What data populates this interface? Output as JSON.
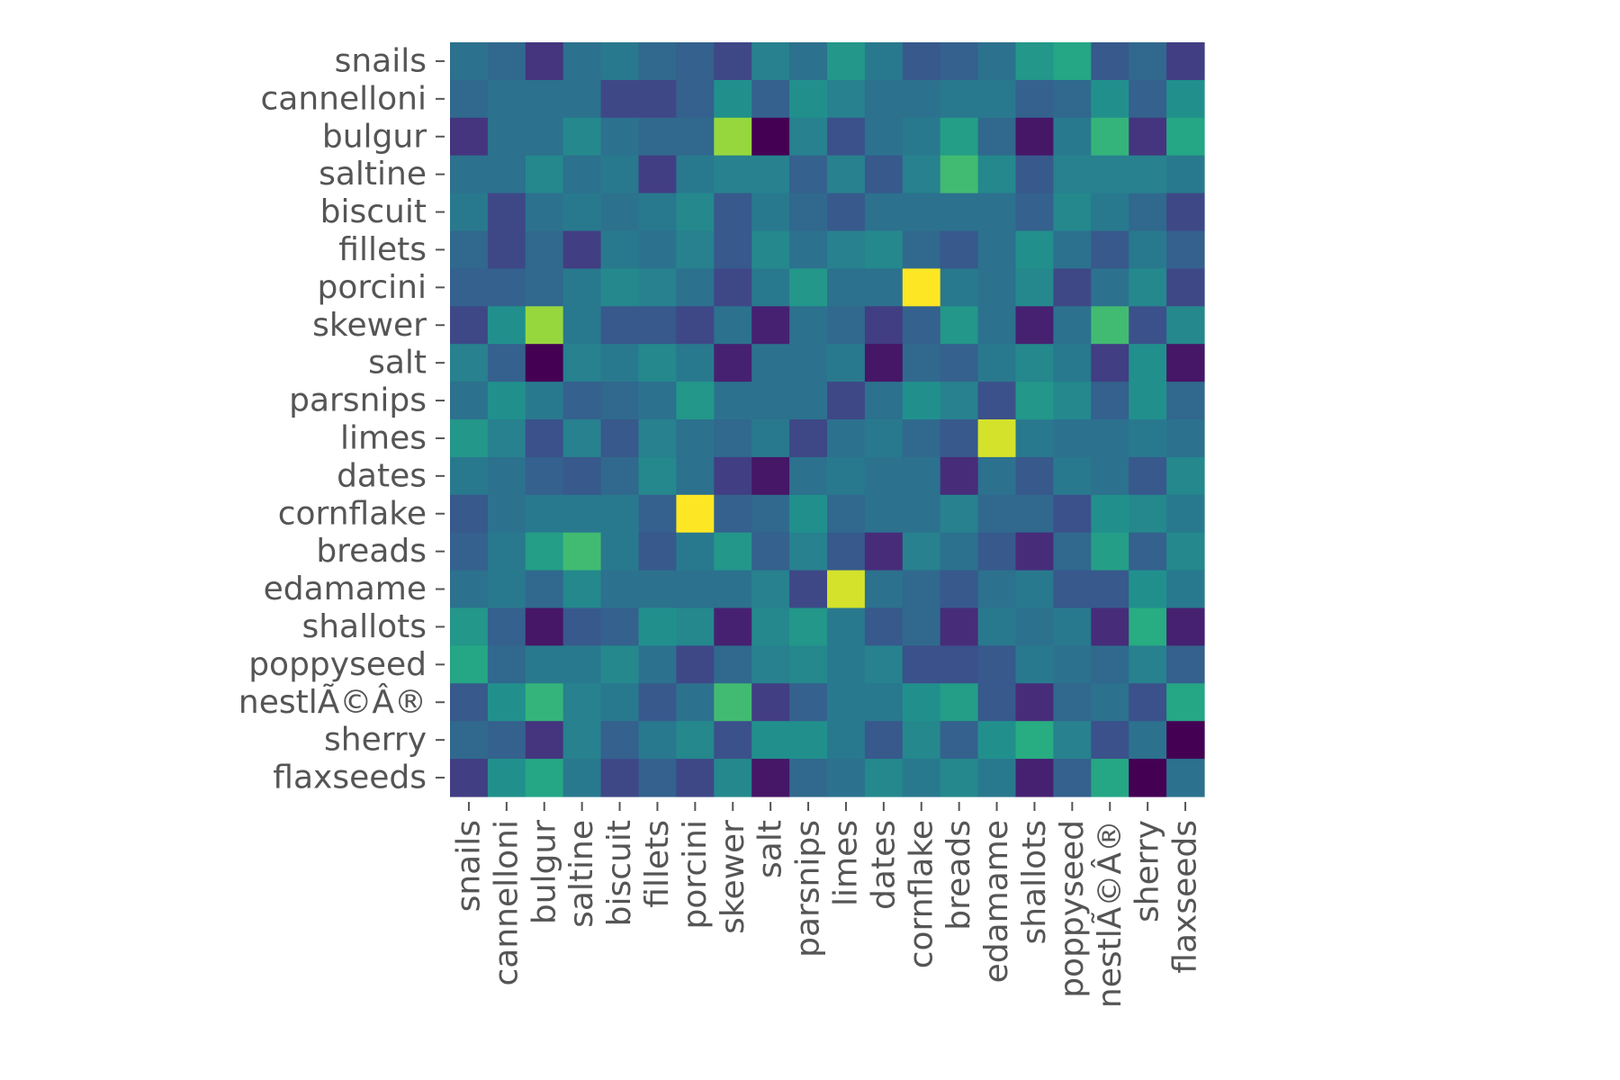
{
  "chart_data": {
    "type": "heatmap",
    "title": "",
    "xlabel": "",
    "ylabel": "",
    "colormap": "viridis",
    "value_range": [
      -0.6,
      1.0
    ],
    "grid": false,
    "legend": "none",
    "row_labels": [
      "snails",
      "cannelloni",
      "bulgur",
      "saltine",
      "biscuit",
      "fillets",
      "porcini",
      "skewer",
      "salt",
      "parsnips",
      "limes",
      "dates",
      "cornflake",
      "breads",
      "edamame",
      "shallots",
      "poppyseed",
      "nestlÃ©Â®",
      "sherry",
      "flaxseeds"
    ],
    "col_labels": [
      "snails",
      "cannelloni",
      "bulgur",
      "saltine",
      "biscuit",
      "fillets",
      "porcini",
      "skewer",
      "salt",
      "parsnips",
      "limes",
      "dates",
      "cornflake",
      "breads",
      "edamame",
      "shallots",
      "poppyseed",
      "nestlÃ©Â®",
      "sherry",
      "flaxseeds"
    ],
    "values": [
      [
        0.0,
        -0.05,
        -0.35,
        0.0,
        0.05,
        -0.05,
        -0.1,
        -0.25,
        0.1,
        0.0,
        0.25,
        0.05,
        -0.15,
        -0.1,
        0.0,
        0.25,
        0.35,
        -0.15,
        -0.05,
        -0.3
      ],
      [
        -0.05,
        0.0,
        0.0,
        0.0,
        -0.25,
        -0.25,
        -0.1,
        0.2,
        -0.1,
        0.2,
        0.1,
        0.0,
        0.0,
        0.05,
        0.05,
        -0.1,
        -0.05,
        0.2,
        -0.1,
        0.2
      ],
      [
        -0.35,
        0.0,
        0.0,
        0.15,
        0.0,
        -0.05,
        -0.05,
        0.75,
        -0.6,
        0.1,
        -0.2,
        0.0,
        0.05,
        0.3,
        -0.05,
        -0.5,
        0.05,
        0.45,
        -0.35,
        0.35
      ],
      [
        0.0,
        0.0,
        0.15,
        0.0,
        0.05,
        -0.3,
        0.05,
        0.1,
        0.1,
        -0.1,
        0.1,
        -0.15,
        0.1,
        0.5,
        0.15,
        -0.15,
        0.1,
        0.1,
        0.1,
        0.05
      ],
      [
        0.05,
        -0.25,
        0.0,
        0.05,
        0.0,
        0.05,
        0.15,
        -0.15,
        0.05,
        -0.05,
        -0.15,
        0.0,
        0.0,
        0.0,
        0.0,
        -0.1,
        0.15,
        0.05,
        -0.05,
        -0.25
      ],
      [
        -0.05,
        -0.25,
        -0.05,
        -0.3,
        0.05,
        0.0,
        0.1,
        -0.15,
        0.15,
        0.0,
        0.1,
        0.15,
        -0.05,
        -0.15,
        0.0,
        0.2,
        0.0,
        -0.15,
        0.05,
        -0.1
      ],
      [
        -0.1,
        -0.1,
        -0.05,
        0.05,
        0.15,
        0.1,
        0.0,
        -0.25,
        0.05,
        0.25,
        0.0,
        0.0,
        1.0,
        0.05,
        0.0,
        0.15,
        -0.25,
        0.0,
        0.15,
        -0.25
      ],
      [
        -0.25,
        0.2,
        0.75,
        0.05,
        -0.15,
        -0.15,
        -0.25,
        0.0,
        -0.45,
        0.0,
        -0.05,
        -0.3,
        -0.1,
        0.25,
        0.0,
        -0.45,
        0.0,
        0.5,
        -0.2,
        0.15
      ],
      [
        0.1,
        -0.1,
        -0.6,
        0.1,
        0.05,
        0.15,
        0.05,
        -0.45,
        0.0,
        0.0,
        0.05,
        -0.5,
        -0.05,
        -0.1,
        0.05,
        0.15,
        0.05,
        -0.3,
        0.2,
        -0.5
      ],
      [
        0.0,
        0.2,
        0.05,
        -0.1,
        -0.05,
        0.0,
        0.25,
        0.0,
        0.0,
        0.0,
        -0.25,
        0.0,
        0.2,
        0.1,
        -0.2,
        0.25,
        0.15,
        -0.1,
        0.2,
        -0.05
      ],
      [
        0.25,
        0.1,
        -0.2,
        0.1,
        -0.15,
        0.1,
        0.0,
        -0.05,
        0.05,
        -0.25,
        0.0,
        0.05,
        -0.05,
        -0.15,
        0.9,
        0.05,
        0.0,
        0.0,
        0.05,
        0.0
      ],
      [
        0.05,
        0.0,
        -0.1,
        -0.15,
        -0.05,
        0.15,
        0.0,
        -0.3,
        -0.5,
        0.0,
        0.05,
        0.0,
        0.0,
        -0.4,
        0.0,
        -0.15,
        0.05,
        0.0,
        -0.15,
        0.15
      ],
      [
        -0.15,
        0.0,
        0.05,
        0.05,
        0.05,
        -0.1,
        1.0,
        -0.1,
        -0.05,
        0.2,
        -0.05,
        0.0,
        0.0,
        0.1,
        -0.05,
        -0.05,
        -0.2,
        0.2,
        0.15,
        0.05
      ],
      [
        -0.1,
        0.05,
        0.3,
        0.5,
        0.05,
        -0.15,
        0.05,
        0.25,
        -0.1,
        0.1,
        -0.15,
        -0.4,
        0.1,
        0.0,
        -0.15,
        -0.4,
        -0.05,
        0.3,
        -0.1,
        0.15
      ],
      [
        0.0,
        0.05,
        -0.05,
        0.15,
        0.0,
        0.0,
        0.0,
        0.0,
        0.1,
        -0.25,
        0.9,
        0.0,
        -0.05,
        -0.15,
        0.0,
        0.05,
        -0.15,
        -0.15,
        0.2,
        0.05
      ],
      [
        0.25,
        -0.1,
        -0.5,
        -0.15,
        -0.1,
        0.2,
        0.15,
        -0.45,
        0.15,
        0.25,
        0.05,
        -0.15,
        -0.05,
        -0.4,
        0.05,
        0.0,
        0.05,
        -0.4,
        0.4,
        -0.45
      ],
      [
        0.35,
        -0.05,
        0.05,
        0.05,
        0.15,
        0.0,
        -0.25,
        -0.05,
        0.1,
        0.15,
        0.05,
        0.1,
        -0.2,
        -0.2,
        -0.15,
        0.05,
        0.0,
        -0.05,
        0.1,
        -0.1
      ],
      [
        -0.15,
        0.2,
        0.45,
        0.1,
        0.05,
        -0.15,
        0.0,
        0.5,
        -0.3,
        -0.1,
        0.05,
        0.05,
        0.2,
        0.3,
        -0.15,
        -0.4,
        -0.05,
        0.0,
        -0.2,
        0.35
      ],
      [
        -0.05,
        -0.1,
        -0.35,
        0.1,
        -0.1,
        0.05,
        0.15,
        -0.2,
        0.2,
        0.2,
        0.05,
        -0.15,
        0.15,
        -0.1,
        0.2,
        0.4,
        0.1,
        -0.2,
        0.0,
        -0.6
      ],
      [
        -0.3,
        0.2,
        0.35,
        0.05,
        -0.25,
        -0.1,
        -0.25,
        0.15,
        -0.5,
        -0.05,
        0.0,
        0.15,
        0.05,
        0.15,
        0.05,
        -0.45,
        -0.1,
        0.35,
        -0.6,
        0.0
      ]
    ]
  }
}
